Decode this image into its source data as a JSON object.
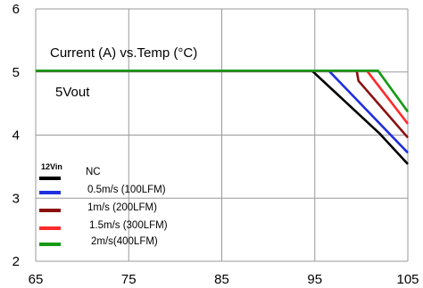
{
  "chart_data": {
    "type": "line",
    "title": "Current (A) vs.Temp (°C)",
    "subtitle": "5Vout",
    "xlabel": "",
    "ylabel": "",
    "xlim": [
      65,
      105
    ],
    "ylim": [
      2,
      6
    ],
    "xticks": [
      65,
      75,
      85,
      95,
      105
    ],
    "yticks": [
      2,
      3,
      4,
      5,
      6
    ],
    "grid": true,
    "legend_title": "12Vin",
    "legend_position": "bottom-left",
    "series": [
      {
        "name": "NC",
        "color": "#000000",
        "points": [
          [
            65,
            5.02
          ],
          [
            94.7,
            5.02
          ],
          [
            102,
            4.02
          ],
          [
            105,
            3.54
          ]
        ]
      },
      {
        "name": "0.5m/s (100LFM)",
        "color": "#1f2fe0",
        "points": [
          [
            65,
            5.02
          ],
          [
            96.5,
            5.02
          ],
          [
            105,
            3.72
          ]
        ]
      },
      {
        "name": "1m/s (200LFM)",
        "color": "#8b1010",
        "points": [
          [
            65,
            5.02
          ],
          [
            99.5,
            5.02
          ],
          [
            99.7,
            4.86
          ],
          [
            105,
            3.96
          ]
        ]
      },
      {
        "name": "1.5m/s (300LFM)",
        "color": "#ff2a2a",
        "points": [
          [
            65,
            5.02
          ],
          [
            100.6,
            5.02
          ],
          [
            105,
            4.18
          ]
        ]
      },
      {
        "name": "2m/s(400LFM)",
        "color": "#169a16",
        "points": [
          [
            65,
            5.02
          ],
          [
            101.8,
            5.02
          ],
          [
            105,
            4.37
          ]
        ]
      }
    ]
  }
}
